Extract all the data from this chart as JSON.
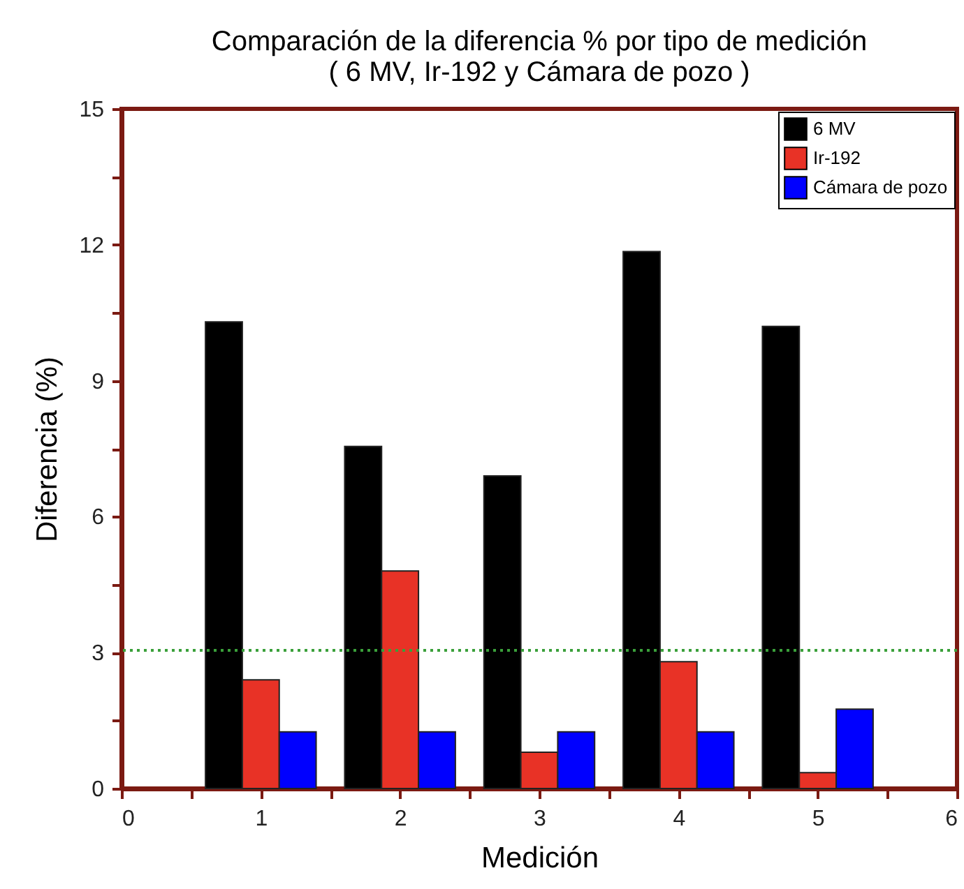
{
  "chart_data": {
    "type": "bar",
    "title": "Comparación de la diferencia %  por tipo de medición\n( 6 MV, Ir-192 y Cámara de pozo )",
    "xlabel": "Medición",
    "ylabel": "Diferencia (%)",
    "x": [
      1,
      2,
      3,
      4,
      5
    ],
    "series": [
      {
        "name": "6 MV",
        "color": "#000000",
        "values": [
          10.3,
          7.55,
          6.9,
          11.85,
          10.2
        ]
      },
      {
        "name": "Ir-192",
        "color": "#e83226",
        "values": [
          2.4,
          4.8,
          0.8,
          2.8,
          0.35
        ]
      },
      {
        "name": "Cámara de pozo",
        "color": "#0000ff",
        "values": [
          1.25,
          1.25,
          1.25,
          1.25,
          1.75
        ]
      }
    ],
    "xlim": [
      0,
      6
    ],
    "xticks": [
      0,
      {
        "value": 0.5,
        "label": null
      },
      1,
      {
        "value": 1.5,
        "label": null
      },
      2,
      {
        "value": 2.5,
        "label": null
      },
      3,
      {
        "value": 3.5,
        "label": null
      },
      4,
      {
        "value": 4.5,
        "label": null
      },
      5,
      {
        "value": 5.5,
        "label": null
      },
      6
    ],
    "ylim": [
      0,
      15
    ],
    "yticks": [
      0,
      {
        "value": 1.5,
        "label": null
      },
      3,
      {
        "value": 4.5,
        "label": null
      },
      6,
      {
        "value": 7.5,
        "label": null
      },
      9,
      {
        "value": 10.5,
        "label": null
      },
      12,
      {
        "value": 13.5,
        "label": null
      },
      15
    ],
    "ref_lines": [
      {
        "axis": "y",
        "value": 3.05,
        "color": "#3aa03a",
        "line_style": "dotted"
      }
    ],
    "legend": "top right",
    "grid": false
  }
}
